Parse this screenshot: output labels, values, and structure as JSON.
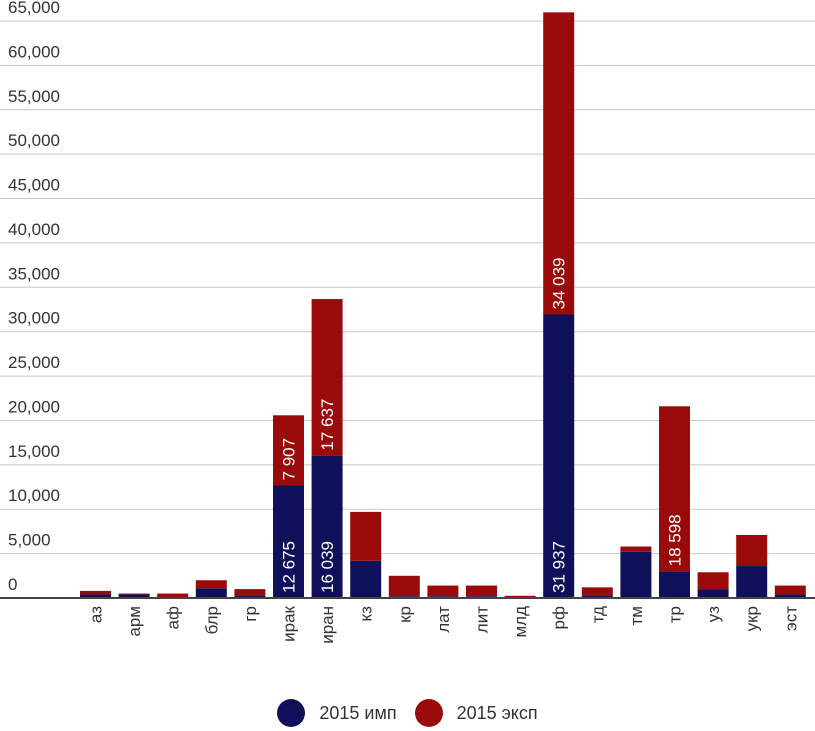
{
  "chart_data": {
    "type": "bar",
    "stacked": true,
    "categories": [
      "аз",
      "арм",
      "аф",
      "блр",
      "гр",
      "ирак",
      "иран",
      "кз",
      "кр",
      "лат",
      "лит",
      "млд",
      "рф",
      "тд",
      "тм",
      "тр",
      "уз",
      "укр",
      "эст"
    ],
    "series": [
      {
        "name": "2015 имп",
        "color": "#10105a",
        "values": [
          400,
          400,
          100,
          1100,
          300,
          12675,
          16039,
          4200,
          200,
          200,
          200,
          100,
          31937,
          300,
          5200,
          3000,
          1000,
          3600,
          400
        ],
        "labels": [
          "",
          "",
          "",
          "",
          "",
          "12 675",
          "16 039",
          "",
          "",
          "",
          "",
          "",
          "31 937",
          "",
          "",
          "",
          "",
          "",
          ""
        ]
      },
      {
        "name": "2015 эксп",
        "color": "#9b0a0a",
        "values": [
          400,
          100,
          400,
          900,
          700,
          7907,
          17637,
          5500,
          2300,
          1200,
          1200,
          150,
          34039,
          900,
          600,
          18598,
          1900,
          3500,
          1000
        ],
        "labels": [
          "",
          "",
          "",
          "",
          "",
          "7 907",
          "17 637",
          "",
          "",
          "",
          "",
          "",
          "34 039",
          "",
          "",
          "18 598",
          "",
          "",
          ""
        ]
      }
    ],
    "yticks": [
      "65,000",
      "60,000",
      "55,000",
      "50,000",
      "45,000",
      "40,000",
      "35,000",
      "30,000",
      "25,000",
      "20,000",
      "15,000",
      "10,000",
      "5,000",
      "0"
    ],
    "ylim": [
      0,
      65000
    ],
    "grid": true,
    "legend_position": "bottom"
  }
}
